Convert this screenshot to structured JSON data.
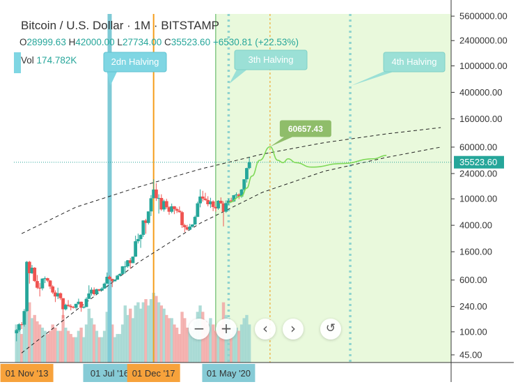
{
  "header": {
    "title": "Bitcoin / U.S. Dollar · 1M · BITSTAMP",
    "ohlc": {
      "o_label": "O",
      "o": "28999.63",
      "h_label": "H",
      "h": "42000.00",
      "l_label": "L",
      "l": "27734.00",
      "c_label": "C",
      "c": "35523.60",
      "change": "+6530.81 (+22.53%)"
    },
    "volume": {
      "label": "Vol",
      "value": "174.782K"
    }
  },
  "colors": {
    "up": "#26a69a",
    "down": "#ef5350",
    "halving_2": "#7ecad6",
    "halving_3": "#8fd3cf",
    "halving_4": "#8fd3cf",
    "dec17_line": "#f59d1a",
    "projection": "#7ed957",
    "green_zone": "#e9f9dc",
    "price_tag": "#26a69a",
    "peak_tag": "#8fbd6a"
  },
  "controls": {
    "zoom_out": "−",
    "zoom_in": "+",
    "scroll_left": "‹",
    "scroll_right": "›",
    "reset": "↺"
  },
  "chart_data": {
    "type": "candlestick",
    "y_scale": "log",
    "ylim": [
      38,
      6000000
    ],
    "y_ticks": [
      "5600000.00",
      "2400000.00",
      "1000000.00",
      "400000.00",
      "160000.00",
      "60000.00",
      "24000.00",
      "10000.00",
      "4000.00",
      "1600.00",
      "600.00",
      "240.00",
      "100.00",
      "45.00"
    ],
    "x_labels": [
      {
        "text": "01 Nov '13",
        "date": "2013-11",
        "highlight": "orange"
      },
      {
        "text": "01 Jul '16",
        "date": "2016-07",
        "highlight": "blue"
      },
      {
        "text": "01 Dec '17",
        "date": "2017-12",
        "highlight": "orange"
      },
      {
        "text": "01 May '20",
        "date": "2020-05",
        "highlight": "blue"
      }
    ],
    "last_price": "35523.60",
    "last_price_value": 35523.6,
    "halvings": [
      {
        "label": "2dn Halving",
        "date": "2016-07"
      },
      {
        "label": "3th Halving",
        "date": "2020-05"
      },
      {
        "label": "4th Halving",
        "date": "2024-04"
      }
    ],
    "projection_peak": {
      "label": "60657.43",
      "value": 60657.43,
      "date": "2021-09"
    },
    "projection_path": [
      {
        "date": "2020-05",
        "value": 8800
      },
      {
        "date": "2020-10",
        "value": 11000
      },
      {
        "date": "2020-12",
        "value": 14500
      },
      {
        "date": "2021-02",
        "value": 22000
      },
      {
        "date": "2021-05",
        "value": 38000
      },
      {
        "date": "2021-09",
        "value": 60657
      },
      {
        "date": "2021-12",
        "value": 38000
      },
      {
        "date": "2022-02",
        "value": 35000
      },
      {
        "date": "2022-04",
        "value": 40000
      },
      {
        "date": "2022-07",
        "value": 35000
      },
      {
        "date": "2023-01",
        "value": 30000
      },
      {
        "date": "2024-01",
        "value": 34000
      },
      {
        "date": "2025-01",
        "value": 40000
      },
      {
        "date": "2025-06",
        "value": 45000
      }
    ],
    "upper_curve": [
      {
        "date": "2013-09",
        "value": 3000
      },
      {
        "date": "2015-06",
        "value": 7500
      },
      {
        "date": "2017-06",
        "value": 15000
      },
      {
        "date": "2019-06",
        "value": 28000
      },
      {
        "date": "2021-06",
        "value": 47000
      },
      {
        "date": "2023-06",
        "value": 70000
      },
      {
        "date": "2025-06",
        "value": 95000
      },
      {
        "date": "2027-03",
        "value": 118000
      }
    ],
    "lower_curve": [
      {
        "date": "2013-09",
        "value": 48
      },
      {
        "date": "2015-06",
        "value": 210
      },
      {
        "date": "2017-06",
        "value": 1100
      },
      {
        "date": "2019-06",
        "value": 4300
      },
      {
        "date": "2021-06",
        "value": 12500
      },
      {
        "date": "2023-06",
        "value": 26000
      },
      {
        "date": "2025-06",
        "value": 42000
      },
      {
        "date": "2027-03",
        "value": 60000
      }
    ],
    "series": [
      {
        "date": "2013-07",
        "o": 95,
        "h": 110,
        "l": 72,
        "c": 106,
        "v": 60
      },
      {
        "date": "2013-08",
        "o": 106,
        "h": 135,
        "l": 100,
        "c": 130,
        "v": 55
      },
      {
        "date": "2013-09",
        "o": 130,
        "h": 140,
        "l": 110,
        "c": 128,
        "v": 45
      },
      {
        "date": "2013-10",
        "o": 128,
        "h": 220,
        "l": 120,
        "c": 205,
        "v": 60
      },
      {
        "date": "2013-11",
        "o": 205,
        "h": 1160,
        "l": 200,
        "c": 1130,
        "v": 90
      },
      {
        "date": "2013-12",
        "o": 1130,
        "h": 1165,
        "l": 530,
        "c": 760,
        "v": 95
      },
      {
        "date": "2014-01",
        "o": 760,
        "h": 1010,
        "l": 740,
        "c": 920,
        "v": 70
      },
      {
        "date": "2014-02",
        "o": 920,
        "h": 940,
        "l": 560,
        "c": 580,
        "v": 75
      },
      {
        "date": "2014-03",
        "o": 580,
        "h": 715,
        "l": 440,
        "c": 460,
        "v": 65
      },
      {
        "date": "2014-04",
        "o": 460,
        "h": 540,
        "l": 340,
        "c": 450,
        "v": 60
      },
      {
        "date": "2014-05",
        "o": 450,
        "h": 640,
        "l": 420,
        "c": 630,
        "v": 55
      },
      {
        "date": "2014-06",
        "o": 630,
        "h": 680,
        "l": 540,
        "c": 640,
        "v": 50
      },
      {
        "date": "2014-07",
        "o": 640,
        "h": 650,
        "l": 560,
        "c": 590,
        "v": 45
      },
      {
        "date": "2014-08",
        "o": 590,
        "h": 600,
        "l": 440,
        "c": 480,
        "v": 50
      },
      {
        "date": "2014-09",
        "o": 480,
        "h": 500,
        "l": 370,
        "c": 390,
        "v": 60
      },
      {
        "date": "2014-10",
        "o": 390,
        "h": 420,
        "l": 280,
        "c": 340,
        "v": 55
      },
      {
        "date": "2014-11",
        "o": 340,
        "h": 460,
        "l": 310,
        "c": 380,
        "v": 50
      },
      {
        "date": "2014-12",
        "o": 380,
        "h": 390,
        "l": 300,
        "c": 320,
        "v": 50
      },
      {
        "date": "2015-01",
        "o": 320,
        "h": 320,
        "l": 160,
        "c": 218,
        "v": 75
      },
      {
        "date": "2015-02",
        "o": 218,
        "h": 265,
        "l": 210,
        "c": 255,
        "v": 55
      },
      {
        "date": "2015-03",
        "o": 255,
        "h": 300,
        "l": 235,
        "c": 245,
        "v": 50
      },
      {
        "date": "2015-04",
        "o": 245,
        "h": 260,
        "l": 210,
        "c": 235,
        "v": 45
      },
      {
        "date": "2015-05",
        "o": 235,
        "h": 245,
        "l": 225,
        "c": 230,
        "v": 40
      },
      {
        "date": "2015-06",
        "o": 230,
        "h": 265,
        "l": 220,
        "c": 263,
        "v": 40
      },
      {
        "date": "2015-07",
        "o": 263,
        "h": 315,
        "l": 255,
        "c": 283,
        "v": 50
      },
      {
        "date": "2015-08",
        "o": 283,
        "h": 285,
        "l": 200,
        "c": 230,
        "v": 55
      },
      {
        "date": "2015-09",
        "o": 230,
        "h": 245,
        "l": 225,
        "c": 236,
        "v": 40
      },
      {
        "date": "2015-10",
        "o": 236,
        "h": 330,
        "l": 235,
        "c": 313,
        "v": 60
      },
      {
        "date": "2015-11",
        "o": 313,
        "h": 500,
        "l": 310,
        "c": 377,
        "v": 85
      },
      {
        "date": "2015-12",
        "o": 377,
        "h": 465,
        "l": 350,
        "c": 430,
        "v": 70
      },
      {
        "date": "2016-01",
        "o": 430,
        "h": 465,
        "l": 350,
        "c": 368,
        "v": 60
      },
      {
        "date": "2016-02",
        "o": 368,
        "h": 445,
        "l": 365,
        "c": 437,
        "v": 50
      },
      {
        "date": "2016-03",
        "o": 437,
        "h": 440,
        "l": 405,
        "c": 416,
        "v": 40
      },
      {
        "date": "2016-04",
        "o": 416,
        "h": 470,
        "l": 415,
        "c": 448,
        "v": 40
      },
      {
        "date": "2016-05",
        "o": 448,
        "h": 550,
        "l": 440,
        "c": 530,
        "v": 50
      },
      {
        "date": "2016-06",
        "o": 530,
        "h": 780,
        "l": 530,
        "c": 673,
        "v": 80
      },
      {
        "date": "2016-07",
        "o": 673,
        "h": 705,
        "l": 605,
        "c": 624,
        "v": 55
      },
      {
        "date": "2016-08",
        "o": 624,
        "h": 630,
        "l": 470,
        "c": 575,
        "v": 60
      },
      {
        "date": "2016-09",
        "o": 575,
        "h": 615,
        "l": 570,
        "c": 608,
        "v": 40
      },
      {
        "date": "2016-10",
        "o": 608,
        "h": 720,
        "l": 605,
        "c": 700,
        "v": 45
      },
      {
        "date": "2016-11",
        "o": 700,
        "h": 760,
        "l": 680,
        "c": 742,
        "v": 45
      },
      {
        "date": "2016-12",
        "o": 742,
        "h": 975,
        "l": 740,
        "c": 965,
        "v": 60
      },
      {
        "date": "2017-01",
        "o": 965,
        "h": 1150,
        "l": 750,
        "c": 965,
        "v": 90
      },
      {
        "date": "2017-02",
        "o": 965,
        "h": 1200,
        "l": 915,
        "c": 1190,
        "v": 75
      },
      {
        "date": "2017-03",
        "o": 1190,
        "h": 1290,
        "l": 890,
        "c": 1080,
        "v": 85
      },
      {
        "date": "2017-04",
        "o": 1080,
        "h": 1360,
        "l": 1070,
        "c": 1350,
        "v": 70
      },
      {
        "date": "2017-05",
        "o": 1350,
        "h": 2790,
        "l": 1340,
        "c": 2300,
        "v": 90
      },
      {
        "date": "2017-06",
        "o": 2300,
        "h": 3000,
        "l": 2130,
        "c": 2480,
        "v": 95
      },
      {
        "date": "2017-07",
        "o": 2480,
        "h": 2930,
        "l": 1830,
        "c": 2870,
        "v": 85
      },
      {
        "date": "2017-08",
        "o": 2870,
        "h": 4750,
        "l": 2670,
        "c": 4730,
        "v": 95
      },
      {
        "date": "2017-09",
        "o": 4730,
        "h": 5000,
        "l": 2980,
        "c": 4340,
        "v": 100
      },
      {
        "date": "2017-10",
        "o": 4340,
        "h": 6450,
        "l": 4110,
        "c": 6470,
        "v": 90
      },
      {
        "date": "2017-11",
        "o": 6470,
        "h": 11400,
        "l": 5500,
        "c": 10200,
        "v": 100
      },
      {
        "date": "2017-12",
        "o": 10200,
        "h": 19700,
        "l": 10200,
        "c": 13800,
        "v": 110
      },
      {
        "date": "2018-01",
        "o": 13800,
        "h": 17200,
        "l": 9300,
        "c": 10200,
        "v": 105
      },
      {
        "date": "2018-02",
        "o": 10200,
        "h": 11700,
        "l": 6000,
        "c": 10300,
        "v": 95
      },
      {
        "date": "2018-03",
        "o": 10300,
        "h": 11700,
        "l": 6600,
        "c": 6920,
        "v": 90
      },
      {
        "date": "2018-04",
        "o": 6920,
        "h": 9750,
        "l": 6430,
        "c": 9240,
        "v": 85
      },
      {
        "date": "2018-05",
        "o": 9240,
        "h": 9990,
        "l": 7050,
        "c": 7480,
        "v": 75
      },
      {
        "date": "2018-06",
        "o": 7480,
        "h": 7760,
        "l": 5750,
        "c": 6390,
        "v": 70
      },
      {
        "date": "2018-07",
        "o": 6390,
        "h": 8480,
        "l": 6070,
        "c": 7730,
        "v": 70
      },
      {
        "date": "2018-08",
        "o": 7730,
        "h": 7760,
        "l": 5880,
        "c": 7010,
        "v": 60
      },
      {
        "date": "2018-09",
        "o": 7010,
        "h": 7410,
        "l": 6110,
        "c": 6620,
        "v": 55
      },
      {
        "date": "2018-10",
        "o": 6620,
        "h": 7680,
        "l": 6200,
        "c": 6300,
        "v": 45
      },
      {
        "date": "2018-11",
        "o": 6300,
        "h": 6560,
        "l": 3650,
        "c": 4020,
        "v": 80
      },
      {
        "date": "2018-12",
        "o": 4020,
        "h": 4230,
        "l": 3150,
        "c": 3740,
        "v": 70
      },
      {
        "date": "2019-01",
        "o": 3740,
        "h": 4070,
        "l": 3350,
        "c": 3440,
        "v": 55
      },
      {
        "date": "2019-02",
        "o": 3440,
        "h": 4200,
        "l": 3380,
        "c": 3820,
        "v": 55
      },
      {
        "date": "2019-03",
        "o": 3820,
        "h": 4150,
        "l": 3700,
        "c": 4110,
        "v": 50
      },
      {
        "date": "2019-04",
        "o": 4110,
        "h": 5600,
        "l": 4060,
        "c": 5350,
        "v": 65
      },
      {
        "date": "2019-05",
        "o": 5350,
        "h": 9070,
        "l": 5330,
        "c": 8550,
        "v": 80
      },
      {
        "date": "2019-06",
        "o": 8550,
        "h": 13880,
        "l": 7450,
        "c": 10820,
        "v": 90
      },
      {
        "date": "2019-07",
        "o": 10820,
        "h": 13200,
        "l": 9070,
        "c": 10090,
        "v": 80
      },
      {
        "date": "2019-08",
        "o": 10090,
        "h": 12330,
        "l": 9320,
        "c": 9590,
        "v": 65
      },
      {
        "date": "2019-09",
        "o": 9590,
        "h": 10950,
        "l": 7700,
        "c": 8290,
        "v": 60
      },
      {
        "date": "2019-10",
        "o": 8290,
        "h": 10370,
        "l": 7300,
        "c": 9150,
        "v": 70
      },
      {
        "date": "2019-11",
        "o": 9150,
        "h": 9500,
        "l": 6530,
        "c": 7540,
        "v": 60
      },
      {
        "date": "2019-12",
        "o": 7540,
        "h": 7740,
        "l": 6430,
        "c": 7190,
        "v": 50
      },
      {
        "date": "2020-01",
        "o": 7190,
        "h": 9560,
        "l": 6850,
        "c": 9350,
        "v": 60
      },
      {
        "date": "2020-02",
        "o": 9350,
        "h": 10500,
        "l": 8450,
        "c": 8520,
        "v": 60
      },
      {
        "date": "2020-03",
        "o": 8520,
        "h": 9180,
        "l": 3850,
        "c": 6410,
        "v": 95
      },
      {
        "date": "2020-04",
        "o": 6410,
        "h": 9460,
        "l": 6150,
        "c": 8620,
        "v": 75
      },
      {
        "date": "2020-05",
        "o": 8620,
        "h": 10070,
        "l": 8120,
        "c": 9450,
        "v": 70
      },
      {
        "date": "2020-06",
        "o": 9450,
        "h": 10380,
        "l": 8900,
        "c": 9140,
        "v": 45
      },
      {
        "date": "2020-07",
        "o": 9140,
        "h": 11430,
        "l": 8980,
        "c": 11340,
        "v": 55
      },
      {
        "date": "2020-08",
        "o": 11340,
        "h": 12470,
        "l": 10520,
        "c": 11650,
        "v": 55
      },
      {
        "date": "2020-09",
        "o": 11650,
        "h": 12070,
        "l": 9880,
        "c": 10780,
        "v": 50
      },
      {
        "date": "2020-10",
        "o": 10780,
        "h": 14100,
        "l": 10380,
        "c": 13790,
        "v": 60
      },
      {
        "date": "2020-11",
        "o": 13790,
        "h": 19480,
        "l": 13210,
        "c": 19700,
        "v": 70
      },
      {
        "date": "2020-12",
        "o": 19700,
        "h": 29300,
        "l": 17570,
        "c": 28990,
        "v": 75
      },
      {
        "date": "2021-01",
        "o": 28999.63,
        "h": 42000,
        "l": 27734,
        "c": 35523.6,
        "v": 60
      }
    ]
  }
}
